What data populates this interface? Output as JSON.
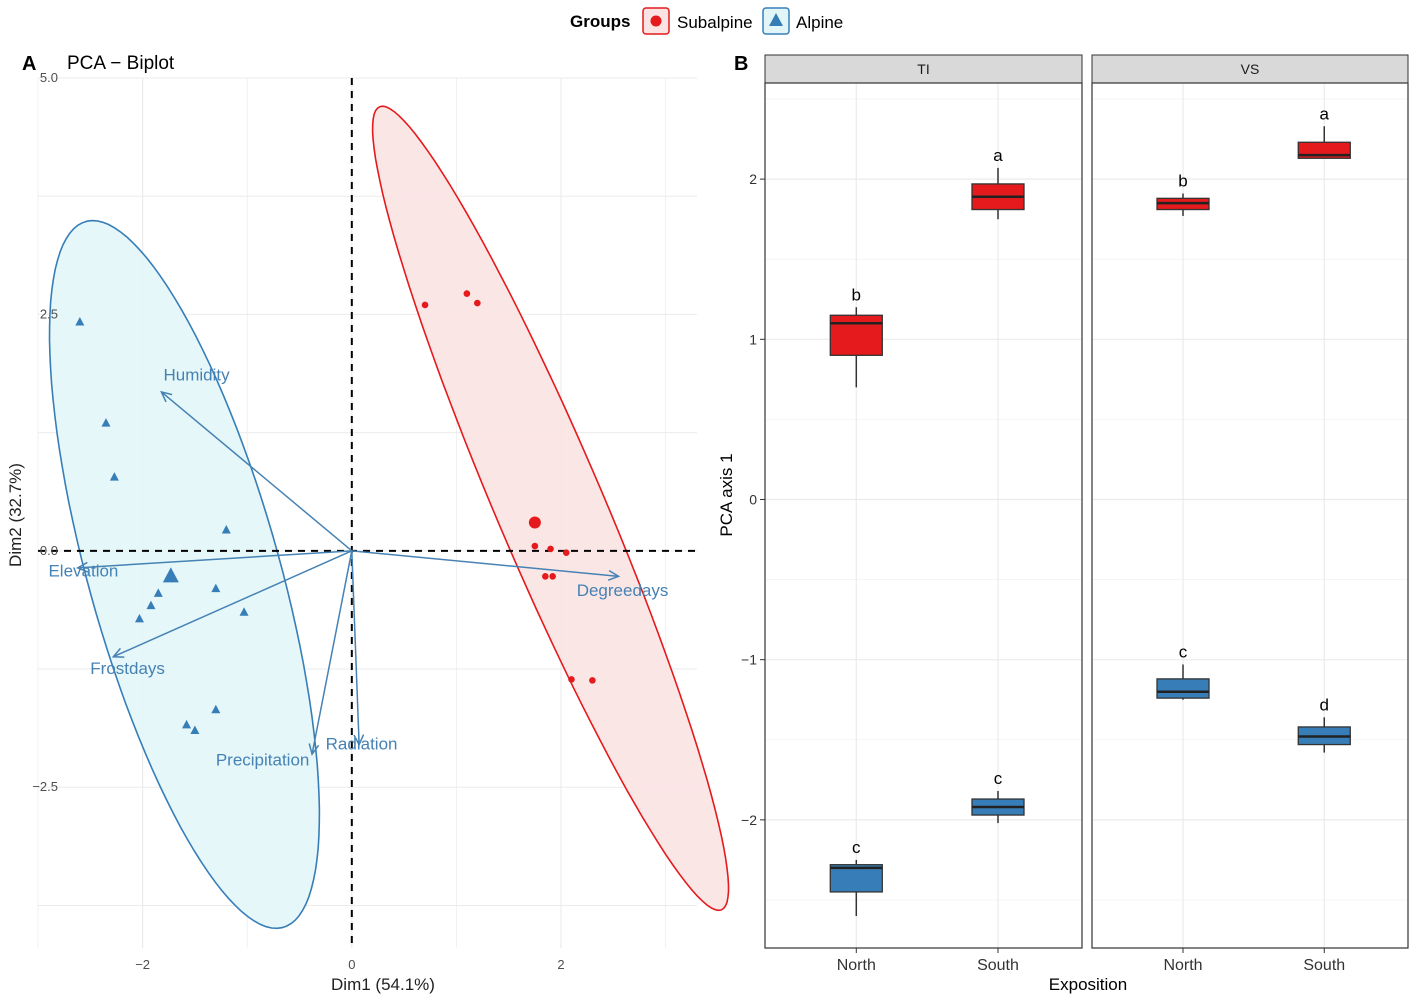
{
  "legend": {
    "title": "Groups",
    "entries": [
      {
        "label": "Subalpine",
        "color": "#e41a1c",
        "shape": "circle"
      },
      {
        "label": "Alpine",
        "color": "#377eb8",
        "shape": "triangle"
      }
    ]
  },
  "chart_data": [
    {
      "panel": "A",
      "type": "scatter",
      "title": "PCA − Biplot",
      "xlabel": "Dim1 (54.1%)",
      "ylabel": "Dim2 (32.7%)",
      "xlim": [
        -3.0,
        3.3
      ],
      "ylim": [
        -4.2,
        5.0
      ],
      "xticks": [
        {
          "v": -2,
          "label": "−2"
        },
        {
          "v": 0,
          "label": "0"
        },
        {
          "v": 2,
          "label": "2"
        }
      ],
      "yticks": [
        {
          "v": 5.0,
          "label": "5.0"
        },
        {
          "v": 2.5,
          "label": "2.5"
        },
        {
          "v": 0.0,
          "label": "0.0"
        },
        {
          "v": -2.5,
          "label": "−2.5"
        }
      ],
      "grid": true,
      "series": [
        {
          "name": "Subalpine",
          "color": "#e41a1c",
          "fill": "#fbe3e3",
          "marker": "circle",
          "points": [
            [
              0.7,
              2.6
            ],
            [
              1.1,
              2.72
            ],
            [
              1.2,
              2.62
            ],
            [
              1.75,
              0.05
            ],
            [
              1.9,
              0.02
            ],
            [
              2.05,
              -0.02
            ],
            [
              1.85,
              -0.27
            ],
            [
              1.92,
              -0.27
            ],
            [
              2.1,
              -1.36
            ],
            [
              2.3,
              -1.37
            ]
          ],
          "centroid": [
            1.75,
            0.3
          ],
          "ellipse": {
            "cx": 1.9,
            "cy": 0.45,
            "a": 4.55,
            "b": 0.52,
            "angle_deg": -69
          }
        },
        {
          "name": "Alpine",
          "color": "#377eb8",
          "fill": "#e2f6f7",
          "marker": "triangle",
          "points": [
            [
              -2.6,
              2.42
            ],
            [
              -2.35,
              1.35
            ],
            [
              -2.27,
              0.78
            ],
            [
              -1.2,
              0.22
            ],
            [
              -1.3,
              -0.4
            ],
            [
              -1.03,
              -0.65
            ],
            [
              -1.85,
              -0.45
            ],
            [
              -1.92,
              -0.58
            ],
            [
              -2.03,
              -0.72
            ],
            [
              -1.3,
              -1.68
            ],
            [
              -1.58,
              -1.84
            ],
            [
              -1.5,
              -1.9
            ]
          ],
          "centroid": [
            -1.73,
            -0.27
          ],
          "ellipse": {
            "cx": -1.6,
            "cy": -0.25,
            "a": 3.85,
            "b": 0.92,
            "angle_deg": -76
          }
        }
      ],
      "vectors": [
        {
          "label": "Humidity",
          "x": -1.82,
          "y": 1.68,
          "lx": -1.8,
          "ly": 1.8
        },
        {
          "label": "Elevation",
          "x": -2.62,
          "y": -0.18,
          "lx": -2.9,
          "ly": -0.27
        },
        {
          "label": "Frostdays",
          "x": -2.28,
          "y": -1.12,
          "lx": -2.5,
          "ly": -1.3
        },
        {
          "label": "Precipitation",
          "x": -0.38,
          "y": -2.15,
          "lx": -1.3,
          "ly": -2.27
        },
        {
          "label": "Radiation",
          "x": 0.07,
          "y": -2.05,
          "lx": -0.25,
          "ly": -2.1
        },
        {
          "label": "Degreedays",
          "x": 2.55,
          "y": -0.27,
          "lx": 2.15,
          "ly": -0.48
        }
      ],
      "vector_color": "#4682b4"
    },
    {
      "panel": "B",
      "type": "box",
      "ylabel": "PCA axis 1",
      "xlabel": "Exposition",
      "ylim": [
        -2.8,
        2.6
      ],
      "yticks": [
        {
          "v": 2,
          "label": "2"
        },
        {
          "v": 1,
          "label": "1"
        },
        {
          "v": 0,
          "label": "0"
        },
        {
          "v": -1,
          "label": "−1"
        },
        {
          "v": -2,
          "label": "−2"
        }
      ],
      "categories": [
        "North",
        "South"
      ],
      "facets": [
        {
          "name": "TI",
          "boxes": [
            {
              "category": "North",
              "group": "Subalpine",
              "color": "#e41a1c",
              "min": 0.7,
              "q1": 0.9,
              "median": 1.1,
              "q3": 1.15,
              "max": 1.2,
              "letter": "b"
            },
            {
              "category": "North",
              "group": "Alpine",
              "color": "#377eb8",
              "min": -2.6,
              "q1": -2.45,
              "median": -2.3,
              "q3": -2.28,
              "max": -2.25,
              "letter": "c"
            },
            {
              "category": "South",
              "group": "Subalpine",
              "color": "#e41a1c",
              "min": 1.75,
              "q1": 1.81,
              "median": 1.89,
              "q3": 1.97,
              "max": 2.07,
              "letter": "a"
            },
            {
              "category": "South",
              "group": "Alpine",
              "color": "#377eb8",
              "min": -2.02,
              "q1": -1.97,
              "median": -1.92,
              "q3": -1.87,
              "max": -1.82,
              "letter": "c"
            }
          ]
        },
        {
          "name": "VS",
          "boxes": [
            {
              "category": "North",
              "group": "Subalpine",
              "color": "#e41a1c",
              "min": 1.77,
              "q1": 1.81,
              "median": 1.85,
              "q3": 1.88,
              "max": 1.91,
              "letter": "b"
            },
            {
              "category": "North",
              "group": "Alpine",
              "color": "#377eb8",
              "min": -1.25,
              "q1": -1.24,
              "median": -1.2,
              "q3": -1.12,
              "max": -1.03,
              "letter": "c"
            },
            {
              "category": "South",
              "group": "Subalpine",
              "color": "#e41a1c",
              "min": 2.13,
              "q1": 2.13,
              "median": 2.15,
              "q3": 2.23,
              "max": 2.33,
              "letter": "a"
            },
            {
              "category": "South",
              "group": "Alpine",
              "color": "#377eb8",
              "min": -1.58,
              "q1": -1.53,
              "median": -1.48,
              "q3": -1.42,
              "max": -1.36,
              "letter": "d"
            }
          ]
        }
      ]
    }
  ]
}
